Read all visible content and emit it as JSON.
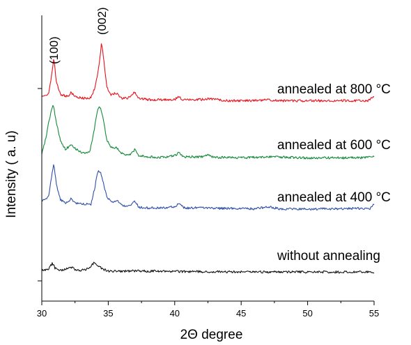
{
  "chart_data": {
    "type": "line",
    "title": "",
    "xlabel": "2Θ  degree",
    "ylabel": "Intensity ( a. u)",
    "xlim": [
      30,
      55
    ],
    "x_ticks": [
      "30",
      "35",
      "40",
      "45",
      "50",
      "55"
    ],
    "y_ticks": [
      "",
      ""
    ],
    "grid": false,
    "peak_labels": [
      {
        "text": "(100)",
        "x": 30.9
      },
      {
        "text": "(002)",
        "x": 34.5
      }
    ],
    "series": [
      {
        "name": "annealed at 800  °C",
        "color": "#e8101a",
        "points": [
          [
            30.0,
            0.2
          ],
          [
            30.5,
            0.22
          ],
          [
            30.7,
            0.5
          ],
          [
            30.9,
            0.92
          ],
          [
            31.1,
            0.45
          ],
          [
            31.4,
            0.22
          ],
          [
            32.0,
            0.18
          ],
          [
            32.2,
            0.26
          ],
          [
            32.5,
            0.18
          ],
          [
            33.0,
            0.15
          ],
          [
            33.7,
            0.15
          ],
          [
            34.0,
            0.35
          ],
          [
            34.3,
            0.75
          ],
          [
            34.5,
            1.22
          ],
          [
            34.7,
            0.8
          ],
          [
            34.9,
            0.35
          ],
          [
            35.2,
            0.22
          ],
          [
            35.6,
            0.25
          ],
          [
            36.0,
            0.15
          ],
          [
            36.5,
            0.15
          ],
          [
            37.0,
            0.27
          ],
          [
            37.3,
            0.15
          ],
          [
            38.0,
            0.12
          ],
          [
            39.0,
            0.12
          ],
          [
            40.0,
            0.12
          ],
          [
            40.3,
            0.18
          ],
          [
            40.6,
            0.12
          ],
          [
            42.0,
            0.12
          ],
          [
            42.5,
            0.14
          ],
          [
            44.0,
            0.1
          ],
          [
            46.0,
            0.1
          ],
          [
            47.0,
            0.12
          ],
          [
            48.0,
            0.1
          ],
          [
            50.0,
            0.1
          ],
          [
            52.0,
            0.1
          ],
          [
            54.5,
            0.1
          ],
          [
            55.0,
            0.18
          ]
        ]
      },
      {
        "name": "annealed at 600  °C",
        "color": "#128a3a",
        "points": [
          [
            30.0,
            0.1
          ],
          [
            30.3,
            0.4
          ],
          [
            30.6,
            0.8
          ],
          [
            30.85,
            1.05
          ],
          [
            31.1,
            0.7
          ],
          [
            31.4,
            0.35
          ],
          [
            31.8,
            0.18
          ],
          [
            32.2,
            0.28
          ],
          [
            32.6,
            0.18
          ],
          [
            33.0,
            0.12
          ],
          [
            33.6,
            0.12
          ],
          [
            33.9,
            0.5
          ],
          [
            34.2,
            0.95
          ],
          [
            34.4,
            1.0
          ],
          [
            34.6,
            0.8
          ],
          [
            34.9,
            0.35
          ],
          [
            35.3,
            0.2
          ],
          [
            35.6,
            0.22
          ],
          [
            36.0,
            0.1
          ],
          [
            36.6,
            0.08
          ],
          [
            37.0,
            0.18
          ],
          [
            37.3,
            0.06
          ],
          [
            38.0,
            0.04
          ],
          [
            39.0,
            0.03
          ],
          [
            40.0,
            0.06
          ],
          [
            40.3,
            0.12
          ],
          [
            40.7,
            0.04
          ],
          [
            42.0,
            0.04
          ],
          [
            42.5,
            0.07
          ],
          [
            43.0,
            0.03
          ],
          [
            45.0,
            0.02
          ],
          [
            47.0,
            0.04
          ],
          [
            50.0,
            0.02
          ],
          [
            52.0,
            0.02
          ],
          [
            54.0,
            0.02
          ],
          [
            55.0,
            0.05
          ]
        ]
      },
      {
        "name": "annealed at 400  °C",
        "color": "#2e4fa8",
        "points": [
          [
            30.0,
            0.18
          ],
          [
            30.5,
            0.25
          ],
          [
            30.7,
            0.6
          ],
          [
            30.9,
            0.88
          ],
          [
            31.1,
            0.5
          ],
          [
            31.4,
            0.2
          ],
          [
            31.8,
            0.15
          ],
          [
            32.2,
            0.22
          ],
          [
            32.5,
            0.15
          ],
          [
            33.0,
            0.12
          ],
          [
            33.7,
            0.12
          ],
          [
            34.0,
            0.45
          ],
          [
            34.2,
            0.75
          ],
          [
            34.4,
            0.75
          ],
          [
            34.6,
            0.55
          ],
          [
            34.9,
            0.25
          ],
          [
            35.3,
            0.15
          ],
          [
            35.6,
            0.2
          ],
          [
            36.0,
            0.1
          ],
          [
            36.6,
            0.08
          ],
          [
            37.0,
            0.18
          ],
          [
            37.3,
            0.06
          ],
          [
            38.0,
            0.05
          ],
          [
            39.0,
            0.05
          ],
          [
            40.0,
            0.07
          ],
          [
            40.3,
            0.14
          ],
          [
            40.7,
            0.05
          ],
          [
            42.0,
            0.05
          ],
          [
            43.0,
            0.04
          ],
          [
            45.0,
            0.04
          ],
          [
            46.0,
            0.03
          ],
          [
            47.0,
            0.07
          ],
          [
            48.0,
            0.03
          ],
          [
            50.0,
            0.03
          ],
          [
            52.0,
            0.03
          ],
          [
            54.0,
            0.04
          ],
          [
            54.7,
            0.04
          ],
          [
            55.0,
            0.12
          ]
        ]
      },
      {
        "name": "without annealing",
        "color": "#111111",
        "points": [
          [
            30.0,
            0.05
          ],
          [
            30.5,
            0.06
          ],
          [
            30.8,
            0.18
          ],
          [
            31.0,
            0.08
          ],
          [
            31.5,
            0.04
          ],
          [
            32.0,
            0.08
          ],
          [
            32.3,
            0.1
          ],
          [
            32.6,
            0.04
          ],
          [
            33.0,
            0.04
          ],
          [
            33.5,
            0.08
          ],
          [
            33.9,
            0.18
          ],
          [
            34.2,
            0.14
          ],
          [
            34.6,
            0.06
          ],
          [
            35.0,
            0.03
          ],
          [
            36.0,
            0.02
          ],
          [
            37.0,
            0.03
          ],
          [
            40.0,
            0.02
          ],
          [
            45.0,
            0.01
          ],
          [
            50.0,
            0.01
          ],
          [
            55.0,
            0.01
          ]
        ]
      }
    ]
  }
}
